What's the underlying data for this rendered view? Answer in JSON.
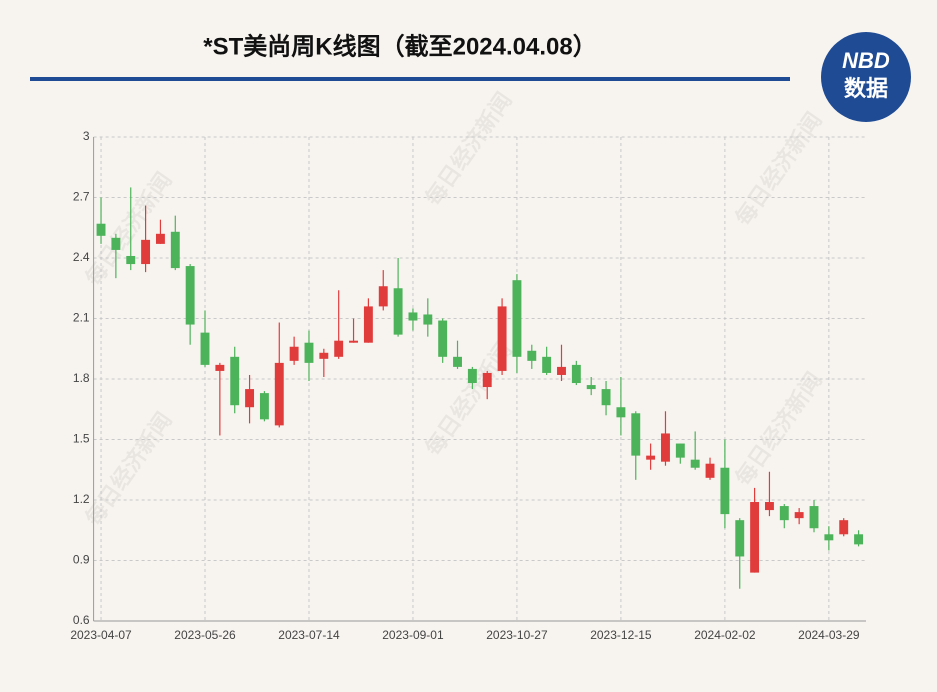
{
  "chart_data": {
    "type": "candlestick",
    "title": "*ST美尚周K线图（截至2024.04.08）",
    "logo": {
      "top": "NBD",
      "bottom": "数据"
    },
    "watermark": "每日经济新闻",
    "categories": [
      "2023-04-07",
      null,
      null,
      null,
      null,
      null,
      null,
      "2023-05-26",
      null,
      null,
      null,
      null,
      null,
      null,
      "2023-07-14",
      null,
      null,
      null,
      null,
      null,
      null,
      "2023-09-01",
      null,
      null,
      null,
      null,
      null,
      null,
      "2023-10-27",
      null,
      null,
      null,
      null,
      null,
      null,
      "2023-12-15",
      null,
      null,
      null,
      null,
      null,
      null,
      "2024-02-02",
      null,
      null,
      null,
      null,
      null,
      null,
      "2024-03-29",
      null,
      null
    ],
    "open": [
      2.57,
      2.5,
      2.41,
      2.37,
      2.47,
      2.53,
      2.36,
      2.03,
      1.84,
      1.91,
      1.66,
      1.73,
      1.57,
      1.89,
      1.98,
      1.9,
      1.91,
      1.98,
      1.98,
      2.16,
      2.25,
      2.13,
      2.12,
      2.09,
      1.91,
      1.85,
      1.76,
      1.84,
      2.29,
      1.94,
      1.91,
      1.82,
      1.87,
      1.77,
      1.75,
      1.66,
      1.63,
      1.4,
      1.39,
      1.48,
      1.4,
      1.31,
      1.36,
      1.1,
      0.84,
      1.15,
      1.17,
      1.11,
      1.17,
      1.03,
      1.03,
      1.03
    ],
    "high": [
      2.7,
      2.52,
      2.75,
      2.66,
      2.59,
      2.61,
      2.37,
      2.14,
      1.88,
      1.96,
      1.82,
      1.74,
      2.08,
      2.01,
      2.04,
      1.95,
      2.24,
      2.1,
      2.2,
      2.34,
      2.4,
      2.15,
      2.2,
      2.1,
      1.99,
      1.86,
      1.84,
      2.2,
      2.32,
      1.97,
      1.96,
      1.97,
      1.89,
      1.81,
      1.79,
      1.81,
      1.64,
      1.48,
      1.64,
      1.48,
      1.54,
      1.41,
      1.5,
      1.11,
      1.26,
      1.34,
      1.18,
      1.16,
      1.2,
      1.07,
      1.11,
      1.05
    ],
    "low": [
      2.47,
      2.3,
      2.34,
      2.33,
      2.47,
      2.34,
      1.97,
      1.86,
      1.52,
      1.63,
      1.58,
      1.59,
      1.56,
      1.87,
      1.79,
      1.81,
      1.9,
      1.98,
      1.98,
      2.14,
      2.01,
      2.04,
      2.01,
      1.88,
      1.85,
      1.75,
      1.7,
      1.82,
      1.83,
      1.85,
      1.82,
      1.79,
      1.77,
      1.72,
      1.62,
      1.52,
      1.3,
      1.35,
      1.37,
      1.38,
      1.35,
      1.3,
      1.06,
      0.76,
      0.84,
      1.12,
      1.06,
      1.08,
      1.04,
      0.95,
      1.02,
      0.97
    ],
    "close": [
      2.51,
      2.44,
      2.37,
      2.49,
      2.52,
      2.35,
      2.07,
      1.87,
      1.87,
      1.67,
      1.75,
      1.6,
      1.88,
      1.96,
      1.88,
      1.93,
      1.99,
      1.99,
      2.16,
      2.26,
      2.02,
      2.09,
      2.07,
      1.91,
      1.86,
      1.78,
      1.83,
      2.16,
      1.91,
      1.89,
      1.83,
      1.86,
      1.78,
      1.75,
      1.67,
      1.61,
      1.42,
      1.42,
      1.53,
      1.41,
      1.36,
      1.38,
      1.13,
      0.92,
      1.19,
      1.19,
      1.1,
      1.14,
      1.06,
      1.0,
      1.1,
      0.98
    ],
    "up_color": "#e03c3c",
    "down_color": "#4db35a",
    "ylim": [
      0.6,
      3
    ],
    "yticks": [
      0.6,
      0.9,
      1.2,
      1.5,
      1.8,
      2.1,
      2.4,
      2.7,
      3
    ],
    "grid": true
  }
}
